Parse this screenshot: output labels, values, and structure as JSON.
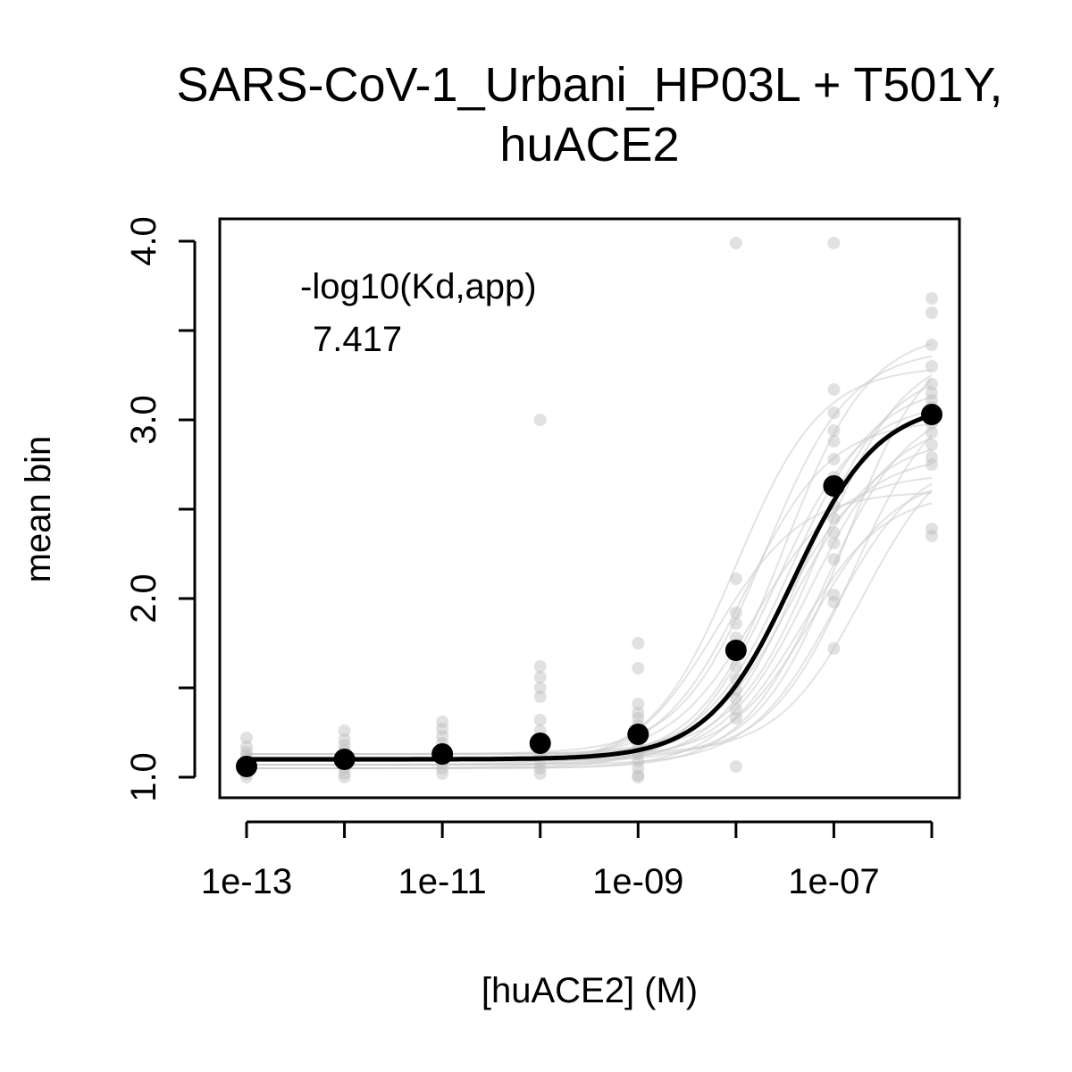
{
  "chart_data": {
    "type": "scatter",
    "title_lines": [
      "SARS-CoV-1_Urbani_HP03L + T501Y,",
      "huACE2"
    ],
    "xlabel": "[huACE2] (M)",
    "ylabel": "mean bin",
    "x_scale": "log10",
    "xlim": [
      1e-13,
      1e-06
    ],
    "ylim": [
      1.0,
      4.0
    ],
    "x_ticks": [
      1e-13,
      1e-11,
      1e-09,
      1e-07
    ],
    "x_tick_labels": [
      "1e-13",
      "1e-11",
      "1e-09",
      "1e-07"
    ],
    "y_ticks": [
      1.0,
      1.5,
      2.0,
      2.5,
      3.0,
      3.5,
      4.0
    ],
    "y_tick_labels": [
      "1.0",
      "",
      "2.0",
      "",
      "3.0",
      "",
      "4.0"
    ],
    "grid": false,
    "annotation": {
      "label": "-log10(Kd,app)",
      "value": "7.417"
    },
    "fit": {
      "neg_log10_kd": 7.417,
      "bottom": 1.1,
      "top": 3.1,
      "hill": 1
    },
    "mean_points": {
      "x": [
        1e-13,
        1e-12,
        1e-11,
        1e-10,
        1e-09,
        1e-08,
        1e-07,
        1e-06
      ],
      "y": [
        1.06,
        1.1,
        1.13,
        1.19,
        1.24,
        1.71,
        2.63,
        3.03
      ]
    },
    "replicate_points": [
      {
        "x": 1e-13,
        "y": [
          1.0,
          1.02,
          1.04,
          1.06,
          1.08,
          1.1,
          1.12,
          1.14,
          1.17,
          1.22
        ]
      },
      {
        "x": 1e-12,
        "y": [
          1.0,
          1.02,
          1.05,
          1.08,
          1.1,
          1.12,
          1.15,
          1.18,
          1.21,
          1.26
        ]
      },
      {
        "x": 1e-11,
        "y": [
          1.02,
          1.05,
          1.08,
          1.11,
          1.14,
          1.16,
          1.19,
          1.23,
          1.27,
          1.31
        ]
      },
      {
        "x": 1e-10,
        "y": [
          1.02,
          1.05,
          1.09,
          1.13,
          1.17,
          1.21,
          1.26,
          1.32,
          1.45,
          1.5,
          1.56,
          1.62,
          3.0
        ]
      },
      {
        "x": 1e-09,
        "y": [
          1.0,
          1.01,
          1.05,
          1.09,
          1.13,
          1.17,
          1.21,
          1.25,
          1.29,
          1.33,
          1.36,
          1.41,
          1.61,
          1.75
        ]
      },
      {
        "x": 1e-08,
        "y": [
          1.06,
          1.33,
          1.38,
          1.44,
          1.49,
          1.55,
          1.62,
          1.7,
          1.78,
          1.86,
          1.92,
          2.11,
          3.99
        ]
      },
      {
        "x": 1e-07,
        "y": [
          1.72,
          1.98,
          2.02,
          2.22,
          2.31,
          2.37,
          2.45,
          2.52,
          2.6,
          2.68,
          2.78,
          2.88,
          2.94,
          3.04,
          3.17,
          3.99
        ]
      },
      {
        "x": 1e-06,
        "y": [
          2.35,
          2.39,
          2.75,
          2.79,
          2.86,
          2.93,
          2.98,
          3.03,
          3.07,
          3.11,
          3.15,
          3.2,
          3.3,
          3.42,
          3.6,
          3.68
        ]
      }
    ],
    "replicate_curve_neg_log10_kds": [
      8.2,
      8.0,
      7.9,
      7.8,
      7.7,
      7.6,
      7.55,
      7.5,
      7.45,
      7.4,
      7.35,
      7.3,
      7.25,
      7.2,
      7.15,
      7.1,
      7.0,
      6.9,
      6.8,
      6.7
    ],
    "colors": {
      "mean": "#000000",
      "replicate": "#bdbdbd",
      "replicate_curve": "#cccccc"
    }
  }
}
